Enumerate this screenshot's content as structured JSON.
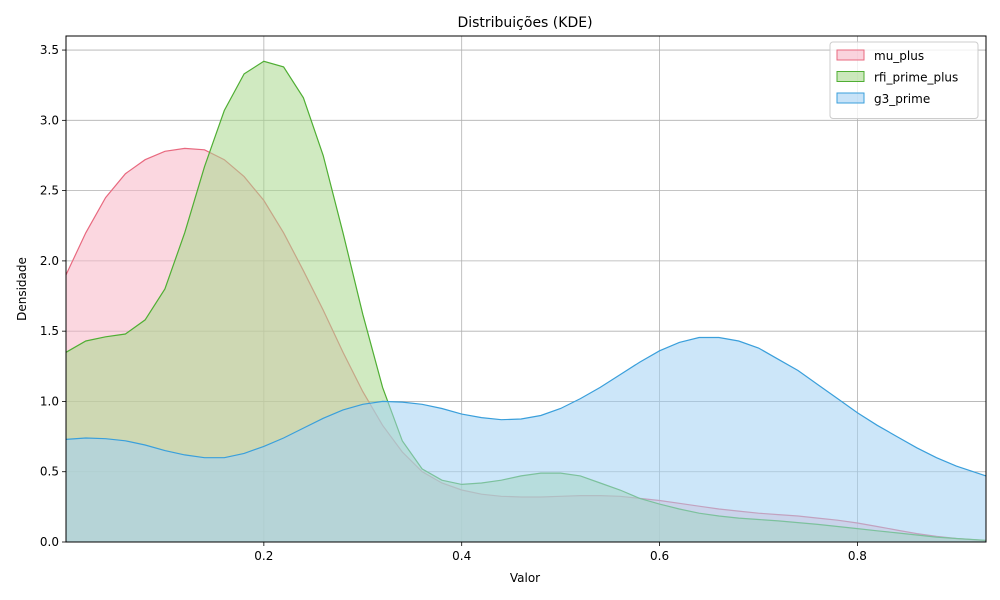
{
  "chart_data": {
    "type": "area",
    "title": "Distribuições (KDE)",
    "xlabel": "Valor",
    "ylabel": "Densidade",
    "xlim": [
      0.0,
      0.93
    ],
    "ylim": [
      0.0,
      3.6
    ],
    "x_ticks": [
      0.2,
      0.4,
      0.6,
      0.8
    ],
    "x_tick_labels": [
      "0.2",
      "0.4",
      "0.6",
      "0.8"
    ],
    "y_ticks": [
      0.0,
      0.5,
      1.0,
      1.5,
      2.0,
      2.5,
      3.0,
      3.5
    ],
    "y_tick_labels": [
      "0.0",
      "0.5",
      "1.0",
      "1.5",
      "2.0",
      "2.5",
      "3.0",
      "3.5"
    ],
    "grid": true,
    "legend_position": "top-right",
    "series": [
      {
        "name": "mu_plus",
        "color": "#e8697f",
        "fill": "#f7b6c6",
        "points": [
          [
            0.0,
            1.9
          ],
          [
            0.02,
            2.2
          ],
          [
            0.04,
            2.45
          ],
          [
            0.06,
            2.62
          ],
          [
            0.08,
            2.72
          ],
          [
            0.1,
            2.78
          ],
          [
            0.12,
            2.8
          ],
          [
            0.14,
            2.79
          ],
          [
            0.16,
            2.72
          ],
          [
            0.18,
            2.6
          ],
          [
            0.2,
            2.43
          ],
          [
            0.22,
            2.2
          ],
          [
            0.24,
            1.93
          ],
          [
            0.26,
            1.65
          ],
          [
            0.28,
            1.35
          ],
          [
            0.3,
            1.07
          ],
          [
            0.32,
            0.83
          ],
          [
            0.34,
            0.64
          ],
          [
            0.36,
            0.5
          ],
          [
            0.38,
            0.42
          ],
          [
            0.4,
            0.37
          ],
          [
            0.42,
            0.34
          ],
          [
            0.44,
            0.325
          ],
          [
            0.46,
            0.32
          ],
          [
            0.48,
            0.32
          ],
          [
            0.5,
            0.325
          ],
          [
            0.52,
            0.33
          ],
          [
            0.54,
            0.33
          ],
          [
            0.56,
            0.325
          ],
          [
            0.58,
            0.31
          ],
          [
            0.6,
            0.295
          ],
          [
            0.62,
            0.275
          ],
          [
            0.64,
            0.255
          ],
          [
            0.66,
            0.235
          ],
          [
            0.68,
            0.22
          ],
          [
            0.7,
            0.205
          ],
          [
            0.72,
            0.195
          ],
          [
            0.74,
            0.185
          ],
          [
            0.76,
            0.17
          ],
          [
            0.78,
            0.155
          ],
          [
            0.8,
            0.135
          ],
          [
            0.82,
            0.11
          ],
          [
            0.84,
            0.085
          ],
          [
            0.86,
            0.06
          ],
          [
            0.88,
            0.04
          ],
          [
            0.9,
            0.025
          ],
          [
            0.93,
            0.01
          ]
        ]
      },
      {
        "name": "rfi_prime_plus",
        "color": "#4fae33",
        "fill": "#a9d98e",
        "points": [
          [
            0.0,
            1.35
          ],
          [
            0.02,
            1.43
          ],
          [
            0.04,
            1.46
          ],
          [
            0.06,
            1.48
          ],
          [
            0.08,
            1.58
          ],
          [
            0.1,
            1.8
          ],
          [
            0.12,
            2.2
          ],
          [
            0.14,
            2.67
          ],
          [
            0.16,
            3.07
          ],
          [
            0.18,
            3.33
          ],
          [
            0.2,
            3.42
          ],
          [
            0.22,
            3.38
          ],
          [
            0.24,
            3.16
          ],
          [
            0.26,
            2.75
          ],
          [
            0.28,
            2.2
          ],
          [
            0.3,
            1.62
          ],
          [
            0.32,
            1.1
          ],
          [
            0.34,
            0.72
          ],
          [
            0.36,
            0.52
          ],
          [
            0.38,
            0.44
          ],
          [
            0.4,
            0.41
          ],
          [
            0.42,
            0.42
          ],
          [
            0.44,
            0.44
          ],
          [
            0.46,
            0.47
          ],
          [
            0.48,
            0.49
          ],
          [
            0.5,
            0.49
          ],
          [
            0.52,
            0.47
          ],
          [
            0.54,
            0.42
          ],
          [
            0.56,
            0.37
          ],
          [
            0.58,
            0.31
          ],
          [
            0.6,
            0.27
          ],
          [
            0.62,
            0.235
          ],
          [
            0.64,
            0.205
          ],
          [
            0.66,
            0.185
          ],
          [
            0.68,
            0.17
          ],
          [
            0.7,
            0.16
          ],
          [
            0.72,
            0.15
          ],
          [
            0.74,
            0.138
          ],
          [
            0.76,
            0.125
          ],
          [
            0.78,
            0.11
          ],
          [
            0.8,
            0.095
          ],
          [
            0.82,
            0.08
          ],
          [
            0.84,
            0.065
          ],
          [
            0.86,
            0.05
          ],
          [
            0.88,
            0.035
          ],
          [
            0.9,
            0.025
          ],
          [
            0.93,
            0.012
          ]
        ]
      },
      {
        "name": "g3_prime",
        "color": "#3a9fdb",
        "fill": "#a3d1f4",
        "points": [
          [
            0.0,
            0.73
          ],
          [
            0.02,
            0.74
          ],
          [
            0.04,
            0.735
          ],
          [
            0.06,
            0.72
          ],
          [
            0.08,
            0.69
          ],
          [
            0.1,
            0.65
          ],
          [
            0.12,
            0.62
          ],
          [
            0.14,
            0.6
          ],
          [
            0.16,
            0.6
          ],
          [
            0.18,
            0.63
          ],
          [
            0.2,
            0.68
          ],
          [
            0.22,
            0.74
          ],
          [
            0.24,
            0.81
          ],
          [
            0.26,
            0.88
          ],
          [
            0.28,
            0.94
          ],
          [
            0.3,
            0.98
          ],
          [
            0.32,
            1.0
          ],
          [
            0.34,
            0.995
          ],
          [
            0.36,
            0.98
          ],
          [
            0.38,
            0.95
          ],
          [
            0.4,
            0.91
          ],
          [
            0.42,
            0.885
          ],
          [
            0.44,
            0.87
          ],
          [
            0.46,
            0.875
          ],
          [
            0.48,
            0.9
          ],
          [
            0.5,
            0.95
          ],
          [
            0.52,
            1.02
          ],
          [
            0.54,
            1.1
          ],
          [
            0.56,
            1.19
          ],
          [
            0.58,
            1.28
          ],
          [
            0.6,
            1.36
          ],
          [
            0.62,
            1.42
          ],
          [
            0.64,
            1.455
          ],
          [
            0.66,
            1.455
          ],
          [
            0.68,
            1.43
          ],
          [
            0.7,
            1.38
          ],
          [
            0.72,
            1.3
          ],
          [
            0.74,
            1.22
          ],
          [
            0.76,
            1.12
          ],
          [
            0.78,
            1.02
          ],
          [
            0.8,
            0.92
          ],
          [
            0.82,
            0.83
          ],
          [
            0.84,
            0.75
          ],
          [
            0.86,
            0.67
          ],
          [
            0.88,
            0.6
          ],
          [
            0.9,
            0.54
          ],
          [
            0.93,
            0.47
          ]
        ]
      }
    ]
  }
}
